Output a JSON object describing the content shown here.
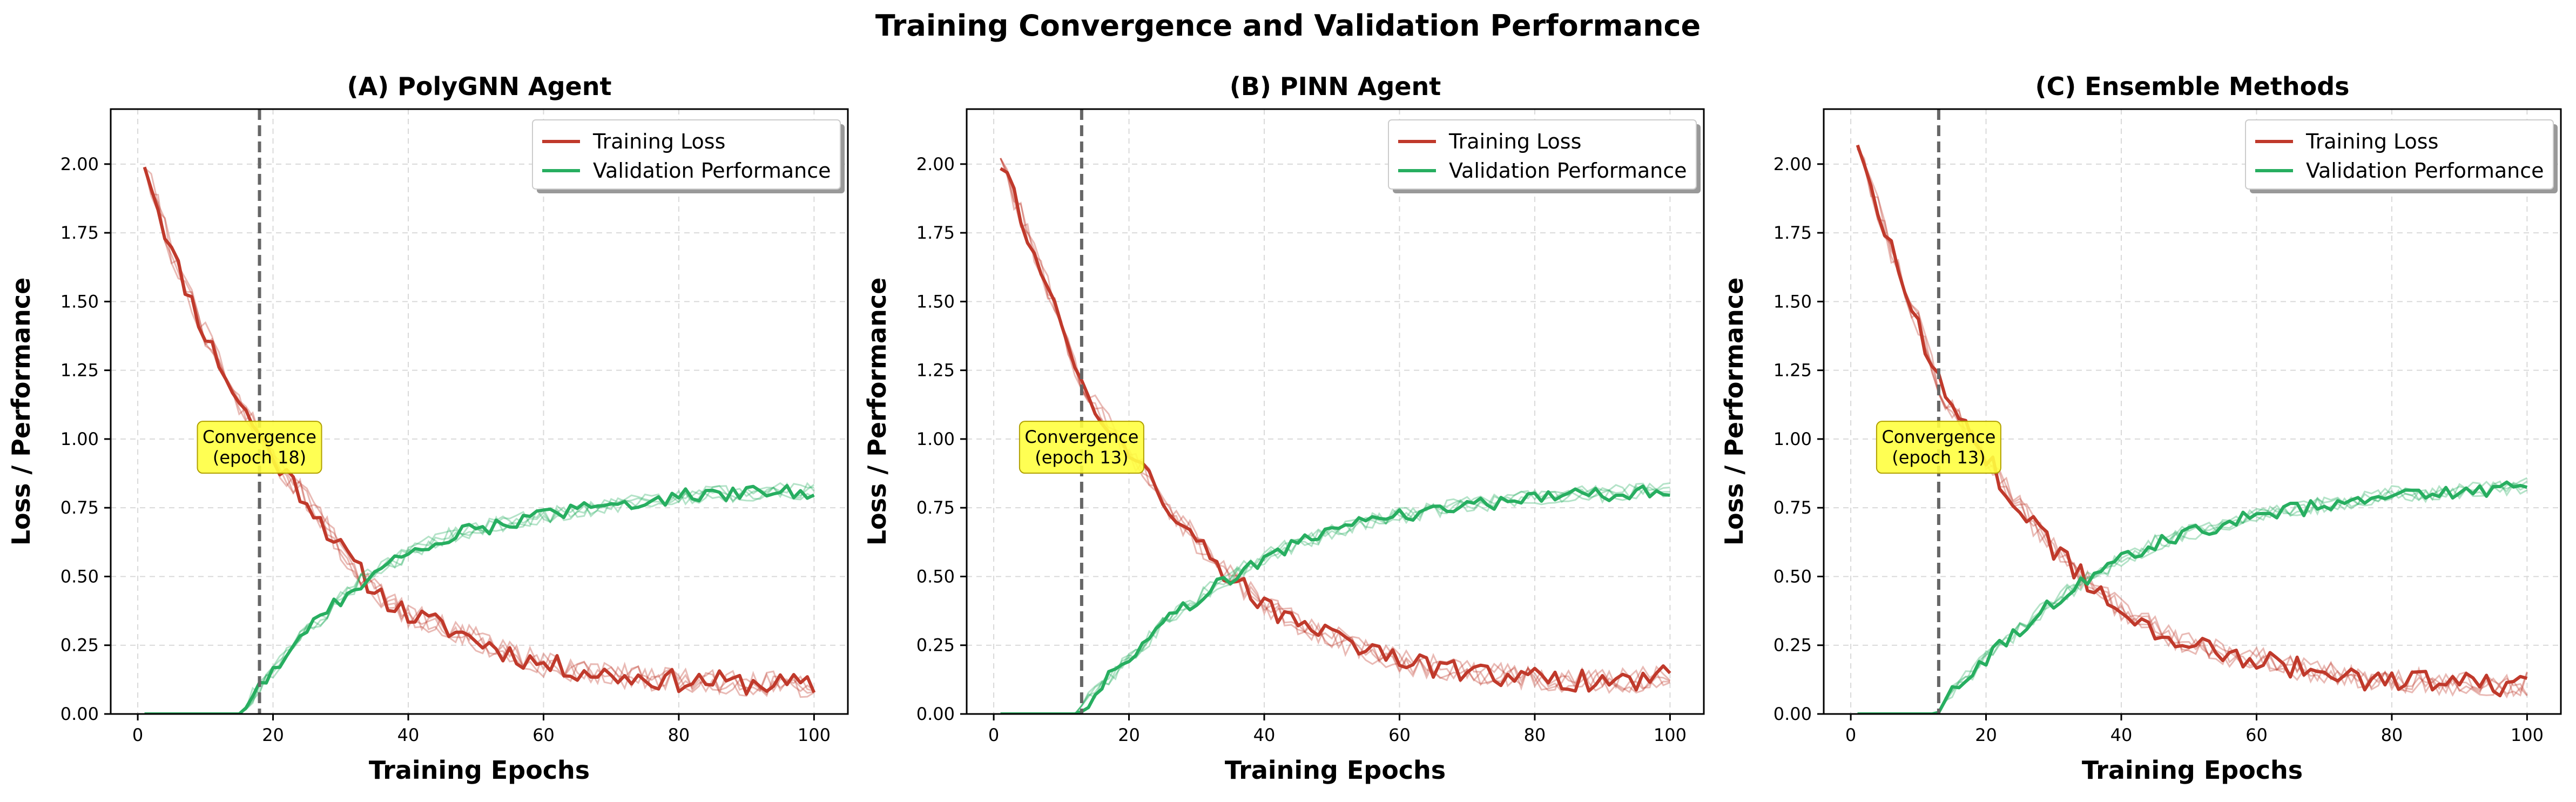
{
  "figure": {
    "title": "Training Convergence and Validation Performance"
  },
  "colors": {
    "training": "#c0392b",
    "validation": "#27ae60",
    "convergence_line": "#666666",
    "annotation_bg": "#ffff40",
    "grid": "#d9d9d9"
  },
  "chart_data": [
    {
      "type": "line",
      "title": "(A) PolyGNN Agent",
      "xlabel": "Training Epochs",
      "ylabel": "Loss / Performance",
      "xlim": [
        -4,
        105
      ],
      "ylim": [
        0,
        2.2
      ],
      "xticks": [
        0,
        20,
        40,
        60,
        80,
        100
      ],
      "yticks": [
        0.0,
        0.25,
        0.5,
        0.75,
        1.0,
        1.25,
        1.5,
        1.75,
        2.0
      ],
      "ytick_labels": [
        "0.00",
        "0.25",
        "0.50",
        "0.75",
        "1.00",
        "1.25",
        "1.50",
        "1.75",
        "2.00"
      ],
      "grid": true,
      "legend": {
        "position": "top-right",
        "entries": [
          "Training Loss",
          "Validation Performance"
        ]
      },
      "convergence": {
        "epoch": 18,
        "label_line1": "Convergence",
        "label_line2": "(epoch 18)",
        "label_y": 0.97
      },
      "series": [
        {
          "name": "Training Loss",
          "x": [
            1,
            5,
            10,
            15,
            18,
            20,
            25,
            30,
            35,
            40,
            45,
            50,
            55,
            60,
            65,
            70,
            75,
            80,
            85,
            90,
            95,
            100
          ],
          "values": [
            2.01,
            1.68,
            1.38,
            1.13,
            1.02,
            0.93,
            0.78,
            0.6,
            0.45,
            0.36,
            0.32,
            0.27,
            0.22,
            0.18,
            0.16,
            0.14,
            0.13,
            0.12,
            0.12,
            0.11,
            0.11,
            0.1
          ]
        },
        {
          "name": "Validation Performance",
          "x": [
            1,
            5,
            10,
            15,
            16,
            18,
            20,
            25,
            30,
            35,
            40,
            45,
            50,
            55,
            60,
            65,
            70,
            75,
            80,
            85,
            90,
            95,
            100
          ],
          "values": [
            0,
            0,
            0,
            0,
            0.03,
            0.1,
            0.16,
            0.3,
            0.42,
            0.52,
            0.58,
            0.64,
            0.67,
            0.7,
            0.72,
            0.74,
            0.76,
            0.78,
            0.79,
            0.8,
            0.8,
            0.81,
            0.81
          ]
        }
      ]
    },
    {
      "type": "line",
      "title": "(B) PINN Agent",
      "xlabel": "Training Epochs",
      "ylabel": "Loss / Performance",
      "xlim": [
        -4,
        105
      ],
      "ylim": [
        0,
        2.2
      ],
      "xticks": [
        0,
        20,
        40,
        60,
        80,
        100
      ],
      "yticks": [
        0.0,
        0.25,
        0.5,
        0.75,
        1.0,
        1.25,
        1.5,
        1.75,
        2.0
      ],
      "ytick_labels": [
        "0.00",
        "0.25",
        "0.50",
        "0.75",
        "1.00",
        "1.25",
        "1.50",
        "1.75",
        "2.00"
      ],
      "grid": true,
      "legend": {
        "position": "top-right",
        "entries": [
          "Training Loss",
          "Validation Performance"
        ]
      },
      "convergence": {
        "epoch": 13,
        "label_line1": "Convergence",
        "label_line2": "(epoch 13)",
        "label_y": 0.97
      },
      "series": [
        {
          "name": "Training Loss",
          "x": [
            1,
            5,
            10,
            13,
            15,
            20,
            25,
            30,
            35,
            40,
            45,
            50,
            55,
            60,
            65,
            70,
            75,
            80,
            85,
            90,
            95,
            100
          ],
          "values": [
            2.01,
            1.75,
            1.42,
            1.2,
            1.12,
            0.95,
            0.78,
            0.63,
            0.5,
            0.4,
            0.33,
            0.28,
            0.23,
            0.19,
            0.17,
            0.15,
            0.14,
            0.13,
            0.12,
            0.12,
            0.12,
            0.15
          ]
        },
        {
          "name": "Validation Performance",
          "x": [
            1,
            5,
            10,
            12,
            13,
            15,
            20,
            25,
            30,
            35,
            40,
            45,
            50,
            55,
            60,
            65,
            70,
            75,
            80,
            85,
            90,
            95,
            100
          ],
          "values": [
            0,
            0,
            0,
            0,
            0.02,
            0.08,
            0.2,
            0.32,
            0.42,
            0.5,
            0.57,
            0.62,
            0.66,
            0.7,
            0.72,
            0.74,
            0.76,
            0.77,
            0.79,
            0.8,
            0.8,
            0.81,
            0.82
          ]
        }
      ]
    },
    {
      "type": "line",
      "title": "(C) Ensemble Methods",
      "xlabel": "Training Epochs",
      "ylabel": "Loss / Performance",
      "xlim": [
        -4,
        105
      ],
      "ylim": [
        0,
        2.2
      ],
      "xticks": [
        0,
        20,
        40,
        60,
        80,
        100
      ],
      "yticks": [
        0.0,
        0.25,
        0.5,
        0.75,
        1.0,
        1.25,
        1.5,
        1.75,
        2.0
      ],
      "ytick_labels": [
        "0.00",
        "0.25",
        "0.50",
        "0.75",
        "1.00",
        "1.25",
        "1.50",
        "1.75",
        "2.00"
      ],
      "grid": true,
      "legend": {
        "position": "top-right",
        "entries": [
          "Training Loss",
          "Validation Performance"
        ]
      },
      "convergence": {
        "epoch": 13,
        "label_line1": "Convergence",
        "label_line2": "(epoch 13)",
        "label_y": 0.97
      },
      "series": [
        {
          "name": "Training Loss",
          "x": [
            1,
            5,
            10,
            13,
            15,
            20,
            25,
            30,
            35,
            40,
            45,
            50,
            55,
            60,
            65,
            70,
            75,
            80,
            85,
            90,
            95,
            100
          ],
          "values": [
            2.1,
            1.75,
            1.42,
            1.2,
            1.1,
            0.93,
            0.75,
            0.6,
            0.48,
            0.38,
            0.31,
            0.26,
            0.22,
            0.2,
            0.17,
            0.15,
            0.13,
            0.12,
            0.12,
            0.11,
            0.1,
            0.11
          ]
        },
        {
          "name": "Validation Performance",
          "x": [
            1,
            5,
            10,
            12,
            13,
            15,
            20,
            25,
            30,
            35,
            40,
            45,
            50,
            55,
            60,
            65,
            70,
            75,
            80,
            85,
            90,
            95,
            100
          ],
          "values": [
            0,
            0,
            0,
            0,
            0.02,
            0.08,
            0.2,
            0.31,
            0.41,
            0.49,
            0.56,
            0.62,
            0.66,
            0.69,
            0.72,
            0.74,
            0.76,
            0.78,
            0.8,
            0.8,
            0.81,
            0.82,
            0.83
          ]
        }
      ]
    }
  ]
}
